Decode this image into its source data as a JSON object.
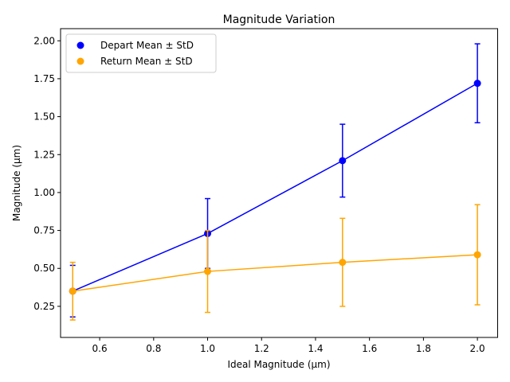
{
  "chart_data": {
    "type": "line",
    "title": "Magnitude Variation",
    "xlabel": "Ideal Magnitude (µm)",
    "ylabel": "Magnitude (µm)",
    "xlim": [
      0.455,
      2.075
    ],
    "ylim": [
      0.045,
      2.08
    ],
    "xticks": [
      0.6,
      0.8,
      1.0,
      1.2,
      1.4,
      1.6,
      1.8,
      2.0
    ],
    "xtick_labels": [
      "0.6",
      "0.8",
      "1.0",
      "1.2",
      "1.4",
      "1.6",
      "1.8",
      "2.0"
    ],
    "yticks": [
      0.25,
      0.5,
      0.75,
      1.0,
      1.25,
      1.5,
      1.75,
      2.0
    ],
    "ytick_labels": [
      "0.25",
      "0.50",
      "0.75",
      "1.00",
      "1.25",
      "1.50",
      "1.75",
      "2.00"
    ],
    "legend_position": "top-left",
    "grid": false,
    "x": [
      0.5,
      1.0,
      1.5,
      2.0
    ],
    "series": [
      {
        "name": "Depart Mean ± StD",
        "color": "#0000ff",
        "values": [
          0.35,
          0.73,
          1.21,
          1.72
        ],
        "err": [
          0.17,
          0.23,
          0.24,
          0.26
        ]
      },
      {
        "name": "Return Mean ± StD",
        "color": "#ffa500",
        "values": [
          0.35,
          0.48,
          0.54,
          0.59
        ],
        "err": [
          0.19,
          0.27,
          0.29,
          0.33
        ]
      }
    ]
  }
}
